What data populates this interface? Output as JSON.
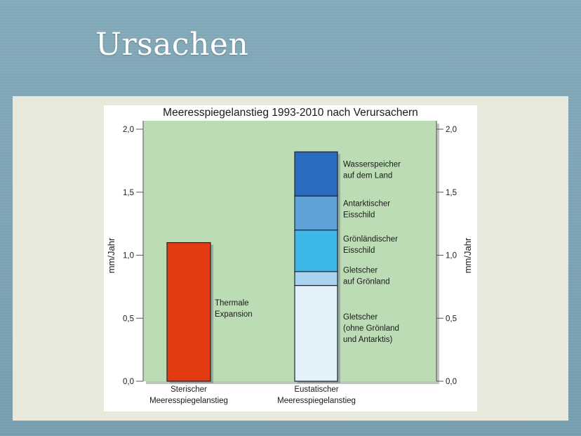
{
  "slide": {
    "title": "Ursachen"
  },
  "colors": {
    "plot_bg": "#bcdcb6",
    "thermal": "#e23a12",
    "land_water": "#2a6cbf",
    "antarctic": "#5ea2d8",
    "greenland_ice": "#3db7e6",
    "greenland_glaciers": "#a9d3ee",
    "other_glaciers": "#e3f1fb"
  },
  "chart_data": {
    "type": "bar",
    "title": "Meeresspiegelanstieg 1993-2010 nach Verursachern",
    "ylabel": "mm/Jahr",
    "ylim": [
      0,
      2.0
    ],
    "yticks": [
      "0,0",
      "0,5",
      "1,0",
      "1,5",
      "2,0"
    ],
    "categories": [
      "Sterischer\nMeeresspiegelanstieg",
      "Eustatischer\nMeeresspiegelanstieg"
    ],
    "bars": [
      {
        "category": 0,
        "segments": [
          {
            "name": "Thermale\nExpansion",
            "value": 1.1
          }
        ]
      },
      {
        "category": 1,
        "segments": [
          {
            "name": "Gletscher\n(ohne Grönland\nund Antarktis)",
            "value": 0.76
          },
          {
            "name": "Gletscher\nauf Grönland",
            "value": 0.11
          },
          {
            "name": "Grönländischer\nEisschild",
            "value": 0.33
          },
          {
            "name": "Antarktischer\nEisschild",
            "value": 0.27
          },
          {
            "name": "Wasserspeicher\nauf dem Land",
            "value": 0.35
          }
        ]
      }
    ]
  }
}
